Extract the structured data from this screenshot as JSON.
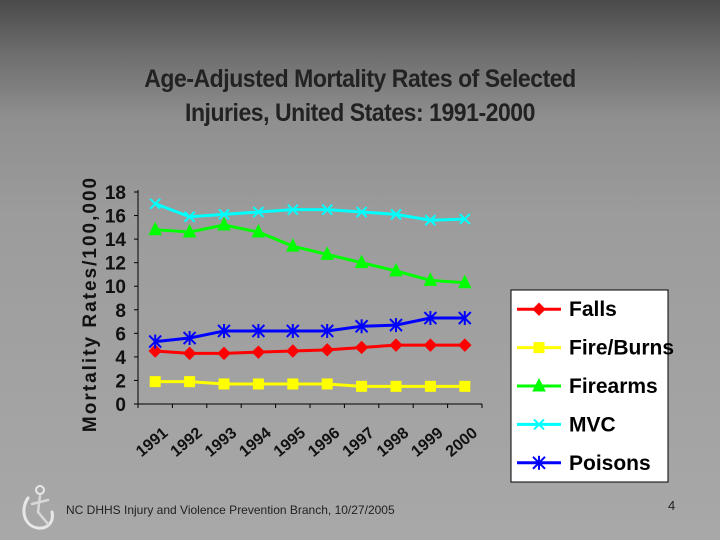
{
  "slide": {
    "footer": "NC DHHS Injury and Violence Prevention Branch, 10/27/2005",
    "page_number": "4"
  },
  "chart_data": {
    "type": "line",
    "title": "Age-Adjusted Mortality Rates of Selected Injuries, United States: 1991-2000",
    "title_lines": [
      "Age-Adjusted Mortality Rates of Selected",
      "Injuries, United States: 1991-2000"
    ],
    "xlabel": "",
    "ylabel": "Mortality Rates/100,000",
    "categories": [
      "1991",
      "1992",
      "1993",
      "1994",
      "1995",
      "1996",
      "1997",
      "1998",
      "1999",
      "2000"
    ],
    "yticks": [
      "0",
      "2",
      "4",
      "6",
      "8",
      "10",
      "12",
      "14",
      "16",
      "18"
    ],
    "ylim": [
      0,
      18
    ],
    "grid": false,
    "legend_position": "right",
    "series": [
      {
        "name": "Falls",
        "color": "#ff0000",
        "marker": "diamond",
        "values": [
          4.5,
          4.3,
          4.3,
          4.4,
          4.5,
          4.6,
          4.8,
          5.0,
          5.0,
          5.0
        ]
      },
      {
        "name": "Fire/Burns",
        "color": "#ffff00",
        "marker": "square",
        "values": [
          1.9,
          1.9,
          1.7,
          1.7,
          1.7,
          1.7,
          1.5,
          1.5,
          1.5,
          1.5
        ]
      },
      {
        "name": "Firearms",
        "color": "#00ff00",
        "marker": "triangle",
        "values": [
          14.8,
          14.6,
          15.2,
          14.6,
          13.4,
          12.7,
          12.0,
          11.3,
          10.5,
          10.3
        ]
      },
      {
        "name": "MVC",
        "color": "#00ffff",
        "marker": "x",
        "values": [
          17.0,
          15.9,
          16.1,
          16.3,
          16.5,
          16.5,
          16.3,
          16.1,
          15.6,
          15.7
        ]
      },
      {
        "name": "Poisons",
        "color": "#0000ff",
        "marker": "asterisk",
        "values": [
          5.3,
          5.6,
          6.2,
          6.2,
          6.2,
          6.2,
          6.6,
          6.7,
          7.3,
          7.3
        ]
      }
    ]
  }
}
